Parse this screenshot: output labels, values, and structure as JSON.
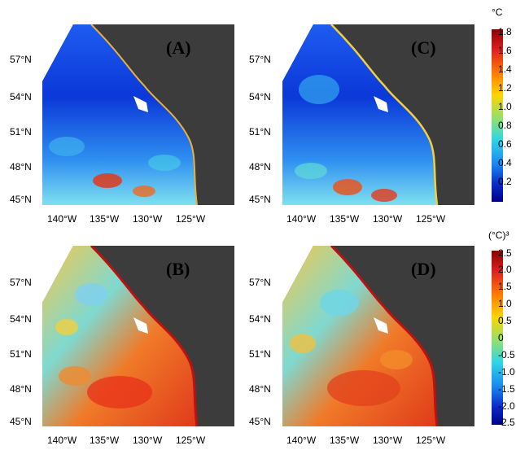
{
  "panels": [
    {
      "label": "(A)",
      "style": "mean"
    },
    {
      "label": "(C)",
      "style": "mean2"
    },
    {
      "label": "(B)",
      "style": "skew"
    },
    {
      "label": "(D)",
      "style": "skew2"
    }
  ],
  "lat_labels": [
    "57°N",
    "54°N",
    "51°N",
    "48°N",
    "45°N"
  ],
  "lon_labels": [
    "140°W",
    "135°W",
    "130°W",
    "125°W"
  ],
  "colorbar_top": {
    "unit": "°C",
    "ticks": [
      "1.8",
      "1.6",
      "1.4",
      "1.2",
      "1.0",
      "0.8",
      "0.6",
      "0.4",
      "0.2"
    ]
  },
  "colorbar_bottom": {
    "unit": "(°C)³",
    "ticks": [
      "2.5",
      "2.0",
      "1.5",
      "1.0",
      "0.5",
      "0",
      "-0.5",
      "-1.0",
      "-1.5",
      "-2.0",
      "-2.5"
    ]
  },
  "colors": {
    "land": "#3c3c3c",
    "ocean_low": "#0a2fd6",
    "ocean_mid": "#36c8e8",
    "ocean_high": "#e8281a"
  }
}
